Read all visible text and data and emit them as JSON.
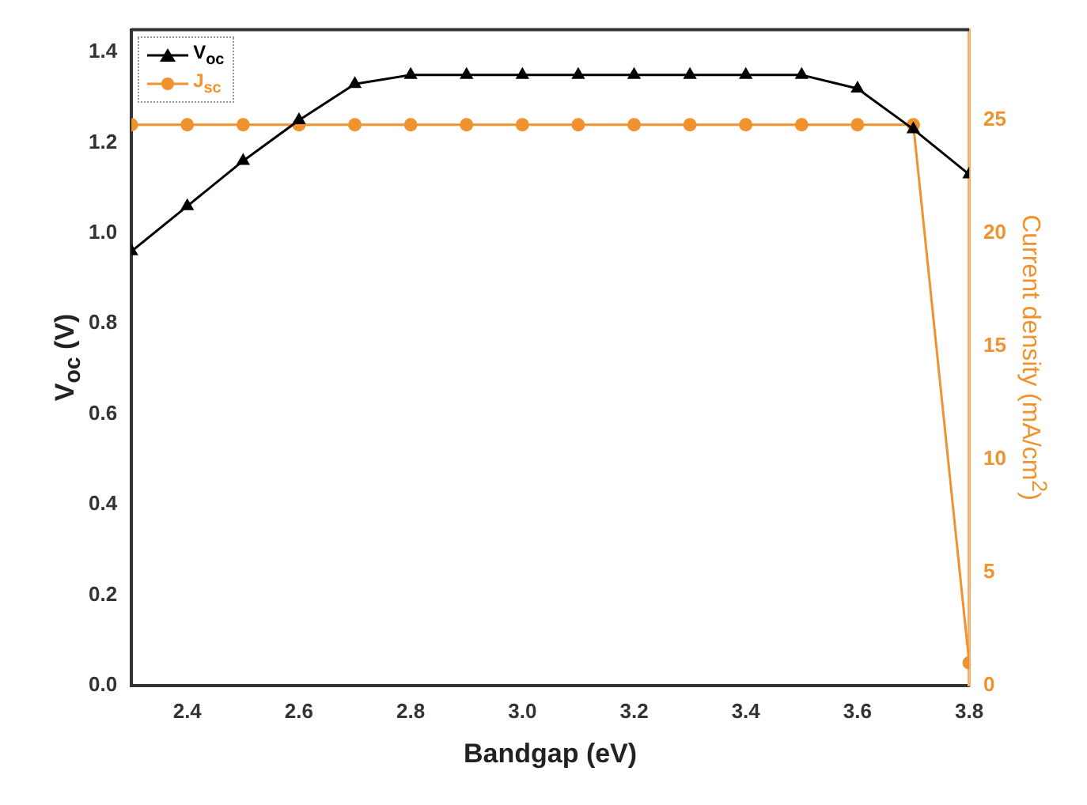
{
  "chart_data": {
    "type": "line",
    "x": [
      2.3,
      2.4,
      2.5,
      2.6,
      2.7,
      2.8,
      2.9,
      3.0,
      3.1,
      3.2,
      3.3,
      3.4,
      3.5,
      3.6,
      3.7,
      3.8
    ],
    "xlabel": "Bandgap (eV)",
    "ylabel": "V$_{oc}$ (V)",
    "y2label": "Current density (mA/cm$^{2}$)",
    "xlim": [
      2.3,
      3.8
    ],
    "xticks": [
      2.4,
      2.6,
      2.8,
      {
        "value": 3.0,
        "label": "3.0"
      },
      3.2,
      3.4,
      3.6,
      3.8
    ],
    "ylim": [
      0,
      1.45
    ],
    "yticks": [
      {
        "value": 0,
        "label": "0.0"
      },
      0.2,
      0.4,
      0.6,
      0.8,
      {
        "value": 1.0,
        "label": "1.0"
      },
      1.2,
      1.4
    ],
    "y2lim": [
      0,
      29
    ],
    "y2ticks": [
      0,
      5,
      10,
      15,
      20,
      25
    ],
    "legend": "top left",
    "grid": false,
    "series": [
      {
        "name": "V$_{oc}$",
        "color": "#000000",
        "marker": "triangle",
        "values": [
          0.96,
          1.06,
          1.16,
          1.25,
          1.33,
          1.35,
          1.35,
          1.35,
          1.35,
          1.35,
          1.35,
          1.35,
          1.35,
          1.32,
          1.23,
          1.13
        ]
      },
      {
        "name": "J$_{sc}$",
        "color": "#f0922e",
        "marker": "circle",
        "axis": "y2",
        "values": [
          24.8,
          24.8,
          24.8,
          24.8,
          24.8,
          24.8,
          24.8,
          24.8,
          24.8,
          24.8,
          24.8,
          24.8,
          24.8,
          24.8,
          24.8,
          1
        ]
      }
    ]
  }
}
